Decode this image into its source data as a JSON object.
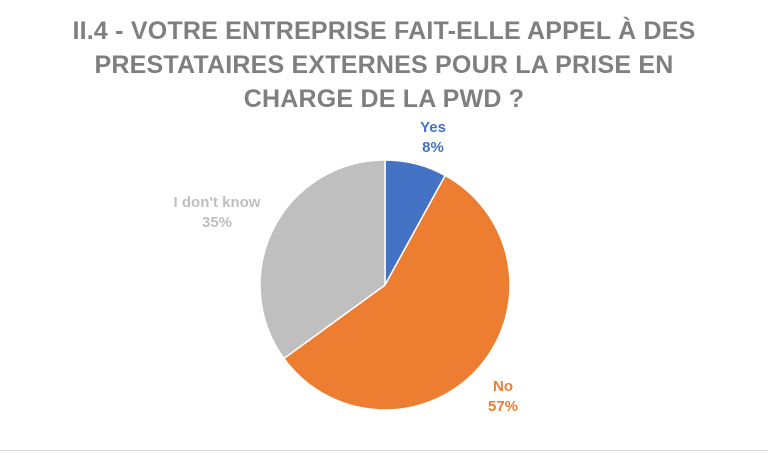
{
  "chart_data": {
    "type": "pie",
    "title": "II.4 - VOTRE ENTREPRISE FAIT-ELLE APPEL À DES PRESTATAIRES EXTERNES POUR LA PRISE EN CHARGE DE LA PWD ?",
    "slices": [
      {
        "label": "Yes",
        "value": 8,
        "percent_label": "8%",
        "color": "#4472c4"
      },
      {
        "label": "No",
        "value": 57,
        "percent_label": "57%",
        "color": "#ed7d31"
      },
      {
        "label": "I don't know",
        "value": 35,
        "percent_label": "35%",
        "color": "#bfbfbf"
      }
    ],
    "start": "12 o'clock",
    "direction": "clockwise",
    "legend": "none",
    "label_colors": [
      "#4472c4",
      "#ed7d31",
      "#bfbfbf"
    ]
  }
}
